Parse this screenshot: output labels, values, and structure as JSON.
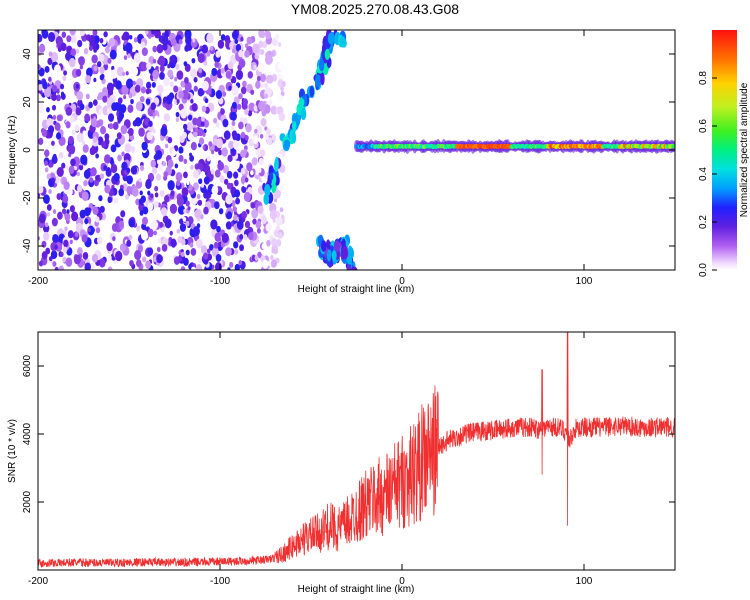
{
  "title": "YM08.2025.270.08.43.G08",
  "colors": {
    "line": "#f03030",
    "background": "#ffffff",
    "axis": "#000000",
    "colormap": [
      "#ffffff",
      "#d8c8f8",
      "#9a60f0",
      "#6020e0",
      "#3020f0",
      "#0060ff",
      "#00d0ff",
      "#00e890",
      "#60f040",
      "#d0e820",
      "#ff9000",
      "#ff2020"
    ]
  },
  "chart_data": [
    {
      "type": "heatmap",
      "title": "",
      "xlabel": "Height of straight line (km)",
      "ylabel": "Frequency (Hz)",
      "xlim": [
        -200,
        150
      ],
      "ylim": [
        -50,
        50
      ],
      "xticks": [
        -200,
        -100,
        0,
        100
      ],
      "yticks": [
        -40,
        -20,
        0,
        20,
        40
      ],
      "grid": false,
      "colorbar": {
        "label": "Normalized spectral amplitude",
        "range": [
          0,
          1
        ],
        "ticks": [
          "0.0",
          "0.2",
          "0.4",
          "0.6",
          "0.8"
        ]
      },
      "features": [
        {
          "name": "scattered noise blobs",
          "x_range": [
            -200,
            -70
          ],
          "y_range": [
            -50,
            50
          ],
          "amplitude": [
            0.05,
            0.35
          ]
        },
        {
          "name": "oblique arc upper",
          "x": [
            -75,
            -65,
            -55,
            -45,
            -40,
            -30
          ],
          "y": [
            -20,
            0,
            18,
            30,
            45,
            48
          ],
          "amplitude": 0.5
        },
        {
          "name": "oblique arc lower",
          "x": [
            -45,
            -38,
            -33,
            -28
          ],
          "y": [
            -40,
            -45,
            -38,
            -48
          ],
          "amplitude": 0.4
        },
        {
          "name": "bright steady band",
          "x_range": [
            -25,
            150
          ],
          "frequency_hz": 1.5,
          "amplitude": 0.95
        }
      ]
    },
    {
      "type": "line",
      "title": "",
      "xlabel": "Height of straight line (km)",
      "ylabel": "SNR (10 * v/v)",
      "xlim": [
        -200,
        150
      ],
      "ylim": [
        0,
        7000
      ],
      "xticks": [
        -200,
        -100,
        0,
        100
      ],
      "yticks": [
        2000,
        4000,
        6000
      ],
      "grid": false,
      "series": [
        {
          "x": [
            -200,
            -180,
            -160,
            -140,
            -120,
            -100,
            -90,
            -80,
            -75,
            -70,
            -65,
            -60,
            -55,
            -50,
            -45,
            -40,
            -35,
            -30,
            -25,
            -20,
            -15,
            -10,
            -5,
            0,
            5,
            10,
            15,
            20,
            25,
            30,
            35,
            40,
            45,
            50,
            55,
            60,
            65,
            70,
            75,
            80,
            85,
            90,
            92,
            95,
            100,
            110,
            120,
            130,
            140,
            150
          ],
          "y": [
            200,
            220,
            210,
            230,
            220,
            250,
            260,
            280,
            300,
            350,
            500,
            700,
            900,
            1000,
            1100,
            1300,
            1200,
            1400,
            1700,
            1900,
            2100,
            2200,
            2400,
            2600,
            2800,
            3100,
            3400,
            3600,
            3800,
            3900,
            4000,
            4050,
            4100,
            4100,
            4150,
            4200,
            4200,
            4200,
            4150,
            4200,
            4200,
            4100,
            3800,
            4150,
            4200,
            4200,
            4250,
            4200,
            4200,
            4200
          ]
        }
      ],
      "spikes": [
        {
          "x": 77,
          "y_max": 5900,
          "y_min": 2800
        },
        {
          "x": 91,
          "y_max": 7000,
          "y_min": 1300
        }
      ]
    }
  ]
}
